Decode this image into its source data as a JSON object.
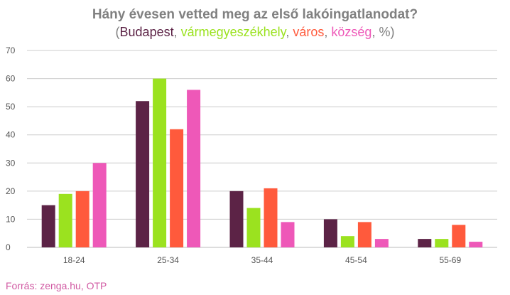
{
  "title": "Hány évesen vetted meg az első lakóingatlanodat?",
  "subtitle": {
    "open": "(",
    "sep": ", ",
    "series": [
      "Budapest",
      "vármegyeszékhely",
      "város",
      "község"
    ],
    "tail": ", %)"
  },
  "source": "Forrás: zenga.hu, OTP",
  "colors": {
    "Budapest": "#5c2346",
    "vármegyeszékhely": "#9be21f",
    "város": "#ff5a3c",
    "község": "#ee58b8",
    "axis_text": "#555555",
    "grid": "#cccccc",
    "title": "#808080",
    "source": "#d15aa3"
  },
  "chart_data": {
    "type": "bar",
    "title": "Hány évesen vetted meg az első lakóingatlanodat?",
    "categories": [
      "18-24",
      "25-34",
      "35-44",
      "45-54",
      "55-69"
    ],
    "series": [
      {
        "name": "Budapest",
        "values": [
          15,
          52,
          20,
          10,
          3
        ]
      },
      {
        "name": "vármegyeszékhely",
        "values": [
          19,
          60,
          14,
          4,
          3
        ]
      },
      {
        "name": "város",
        "values": [
          20,
          42,
          21,
          9,
          8
        ]
      },
      {
        "name": "község",
        "values": [
          30,
          56,
          9,
          3,
          2
        ]
      }
    ],
    "ylim": [
      0,
      70
    ],
    "yticks": [
      0,
      10,
      20,
      30,
      40,
      50,
      60,
      70
    ],
    "grid": true,
    "legend": "in subtitle"
  }
}
